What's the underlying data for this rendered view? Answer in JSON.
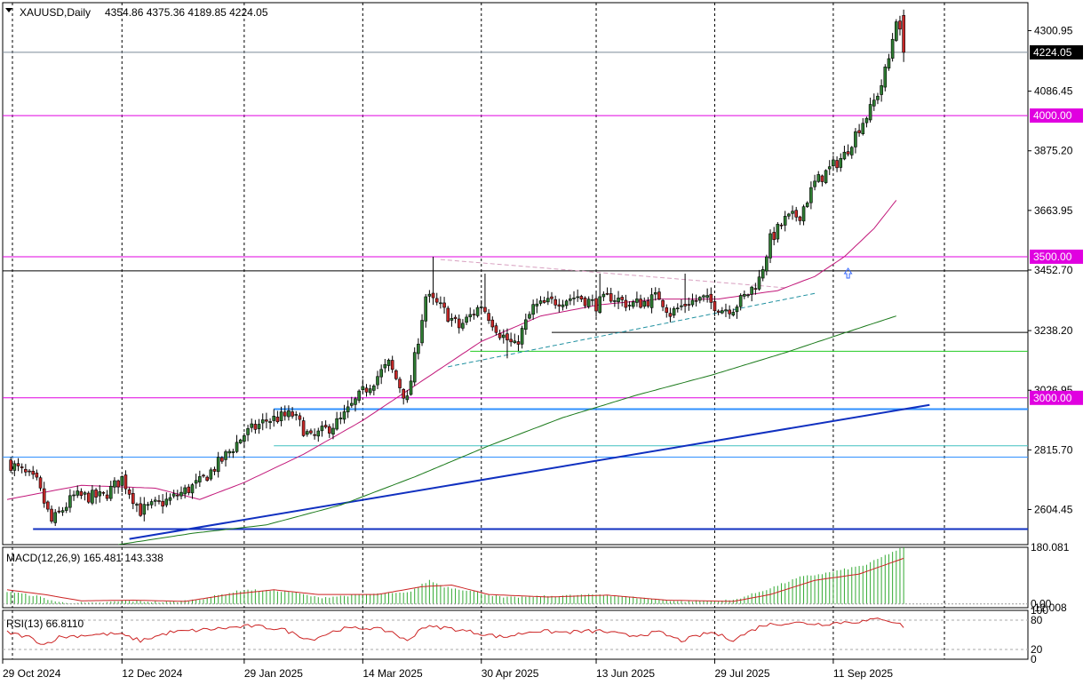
{
  "header": {
    "symbol": "XAUUSD,Daily",
    "ohlc": "4354.86 4375.36 4189.85 4224.05"
  },
  "colors": {
    "bull_candle": "#2e7d32",
    "bear_candle": "#c62828",
    "wick": "#000000",
    "ma_fast": "#c2187a",
    "ma_slow": "#1b7a1b",
    "support_resistance": "#e000e0",
    "trendline": "#1030c0",
    "light_blue": "#3090ff",
    "green_level": "#22cc22",
    "macd_hist": "#33aa33",
    "macd_signal": "#cc2222",
    "rsi_line": "#cc2222",
    "grid": "#000000"
  },
  "chart_data": [
    {
      "type": "candlestick",
      "title": "XAUUSD,Daily",
      "ohlc_last": {
        "open": 4354.86,
        "high": 4375.36,
        "low": 4189.85,
        "close": 4224.05
      },
      "ylim": [
        2480,
        4400
      ],
      "y_ticks": [
        "4300.95",
        "4086.45",
        "3875.20",
        "3663.95",
        "3452.70",
        "3238.20",
        "3026.95",
        "2815.70",
        "2604.45"
      ],
      "current_price_label": "4224.05",
      "x_ticks": [
        "29 Oct 2024",
        "12 Dec 2024",
        "29 Jan 2025",
        "14 Mar 2025",
        "30 Apr 2025",
        "13 Jun 2025",
        "29 Jul 2025",
        "11 Sep 2025"
      ],
      "x_tick_bars": [
        0,
        31,
        64,
        96,
        128,
        159,
        191,
        223
      ],
      "bar_count": 253,
      "anchors": [
        [
          0,
          2775
        ],
        [
          8,
          2700
        ],
        [
          12,
          2560
        ],
        [
          18,
          2650
        ],
        [
          26,
          2650
        ],
        [
          31,
          2715
        ],
        [
          36,
          2600
        ],
        [
          44,
          2640
        ],
        [
          52,
          2700
        ],
        [
          58,
          2780
        ],
        [
          64,
          2870
        ],
        [
          70,
          2920
        ],
        [
          77,
          2940
        ],
        [
          82,
          2855
        ],
        [
          90,
          2920
        ],
        [
          96,
          3020
        ],
        [
          103,
          3120
        ],
        [
          108,
          2990
        ],
        [
          113,
          3360
        ],
        [
          117,
          3320
        ],
        [
          122,
          3250
        ],
        [
          128,
          3330
        ],
        [
          133,
          3230
        ],
        [
          137,
          3180
        ],
        [
          142,
          3320
        ],
        [
          147,
          3340
        ],
        [
          154,
          3360
        ],
        [
          159,
          3330
        ],
        [
          163,
          3360
        ],
        [
          168,
          3330
        ],
        [
          172,
          3340
        ],
        [
          176,
          3360
        ],
        [
          179,
          3300
        ],
        [
          184,
          3340
        ],
        [
          188,
          3350
        ],
        [
          193,
          3315
        ],
        [
          196,
          3320
        ],
        [
          200,
          3370
        ],
        [
          203,
          3420
        ],
        [
          206,
          3560
        ],
        [
          210,
          3630
        ],
        [
          214,
          3650
        ],
        [
          218,
          3760
        ],
        [
          222,
          3810
        ],
        [
          226,
          3860
        ],
        [
          230,
          3960
        ],
        [
          233,
          4020
        ],
        [
          236,
          4110
        ],
        [
          238,
          4200
        ],
        [
          240,
          4350
        ],
        [
          242,
          4224.05
        ]
      ],
      "spikes": [
        [
          115,
          3500,
          "high"
        ],
        [
          129,
          3440,
          "high"
        ],
        [
          135,
          3140,
          "low"
        ],
        [
          160,
          3440,
          "high"
        ],
        [
          183,
          3440,
          "high"
        ]
      ],
      "ma_fast_anchors": [
        [
          0,
          2640
        ],
        [
          20,
          2690
        ],
        [
          40,
          2680
        ],
        [
          52,
          2640
        ],
        [
          64,
          2700
        ],
        [
          80,
          2800
        ],
        [
          96,
          2920
        ],
        [
          112,
          3060
        ],
        [
          128,
          3200
        ],
        [
          144,
          3290
        ],
        [
          160,
          3330
        ],
        [
          176,
          3350
        ],
        [
          192,
          3350
        ],
        [
          208,
          3380
        ],
        [
          218,
          3430
        ],
        [
          226,
          3500
        ],
        [
          234,
          3600
        ],
        [
          240,
          3700
        ]
      ],
      "ma_slow_anchors": [
        [
          30,
          2480
        ],
        [
          50,
          2520
        ],
        [
          70,
          2550
        ],
        [
          90,
          2620
        ],
        [
          110,
          2720
        ],
        [
          130,
          2830
        ],
        [
          150,
          2930
        ],
        [
          170,
          3010
        ],
        [
          190,
          3080
        ],
        [
          210,
          3160
        ],
        [
          226,
          3230
        ],
        [
          240,
          3290
        ]
      ],
      "horizontal_levels": [
        {
          "price": 4000,
          "label": "4000.00",
          "color": "support_resistance"
        },
        {
          "price": 3500,
          "label": "3500.00",
          "color": "support_resistance"
        },
        {
          "price": 3000,
          "label": "3000.00",
          "color": "support_resistance"
        },
        {
          "price": 4224.05,
          "color": "grey"
        },
        {
          "price": 3450,
          "color": "black"
        },
        {
          "price": 3232,
          "color": "black",
          "from_bar": 147
        },
        {
          "price": 3165,
          "color": "green_level",
          "from_bar": 125
        },
        {
          "price": 2960,
          "color": "light_blue",
          "from_bar": 72
        },
        {
          "price": 2830,
          "color": "teal",
          "from_bar": 72
        },
        {
          "price": 2790,
          "color": "light_blue"
        },
        {
          "price": 2535,
          "color": "trendline",
          "from_bar": 7
        }
      ],
      "trend_lines": [
        {
          "from": [
            33,
            2500
          ],
          "to": [
            249,
            2975
          ],
          "color": "trendline"
        },
        {
          "from": [
            119,
            3110
          ],
          "to": [
            218,
            3370
          ],
          "color": "teal",
          "style": "dashed"
        },
        {
          "from": [
            117,
            3490
          ],
          "to": [
            210,
            3390
          ],
          "color": "pink",
          "style": "dashed"
        }
      ],
      "grid": true
    },
    {
      "type": "bar",
      "title": "MACD(12,26,9) 165.481 143.338",
      "macd": 165.481,
      "signal": 143.338,
      "y_ticks": [
        "180.081",
        "0.00",
        "-12.008"
      ],
      "ylim": [
        -12.008,
        180.081
      ],
      "hist_anchors": [
        [
          0,
          40
        ],
        [
          8,
          25
        ],
        [
          14,
          5
        ],
        [
          24,
          2
        ],
        [
          32,
          10
        ],
        [
          44,
          5
        ],
        [
          52,
          15
        ],
        [
          64,
          45
        ],
        [
          76,
          40
        ],
        [
          84,
          20
        ],
        [
          96,
          30
        ],
        [
          108,
          35
        ],
        [
          114,
          75
        ],
        [
          118,
          55
        ],
        [
          126,
          40
        ],
        [
          134,
          20
        ],
        [
          146,
          25
        ],
        [
          160,
          30
        ],
        [
          172,
          18
        ],
        [
          182,
          8
        ],
        [
          196,
          12
        ],
        [
          206,
          50
        ],
        [
          214,
          85
        ],
        [
          222,
          100
        ],
        [
          232,
          125
        ],
        [
          238,
          160
        ],
        [
          242,
          180
        ]
      ],
      "signal_anchors": [
        [
          0,
          45
        ],
        [
          10,
          30
        ],
        [
          20,
          10
        ],
        [
          34,
          12
        ],
        [
          48,
          8
        ],
        [
          60,
          30
        ],
        [
          72,
          45
        ],
        [
          84,
          30
        ],
        [
          100,
          30
        ],
        [
          112,
          55
        ],
        [
          120,
          60
        ],
        [
          130,
          30
        ],
        [
          146,
          22
        ],
        [
          162,
          28
        ],
        [
          178,
          12
        ],
        [
          196,
          8
        ],
        [
          206,
          30
        ],
        [
          218,
          75
        ],
        [
          230,
          95
        ],
        [
          242,
          145
        ]
      ],
      "grid": true
    },
    {
      "type": "line",
      "title": "RSI(13) 66.8110",
      "rsi": 66.811,
      "y_ticks": [
        "100",
        "80",
        "20",
        "0"
      ],
      "ylim": [
        0,
        100
      ],
      "rsi_anchors": [
        [
          0,
          55
        ],
        [
          6,
          45
        ],
        [
          10,
          30
        ],
        [
          14,
          45
        ],
        [
          22,
          50
        ],
        [
          30,
          52
        ],
        [
          36,
          38
        ],
        [
          44,
          55
        ],
        [
          56,
          62
        ],
        [
          66,
          68
        ],
        [
          74,
          62
        ],
        [
          82,
          40
        ],
        [
          90,
          62
        ],
        [
          98,
          64
        ],
        [
          104,
          56
        ],
        [
          108,
          36
        ],
        [
          112,
          66
        ],
        [
          118,
          65
        ],
        [
          126,
          55
        ],
        [
          134,
          45
        ],
        [
          142,
          58
        ],
        [
          150,
          55
        ],
        [
          160,
          58
        ],
        [
          168,
          48
        ],
        [
          176,
          55
        ],
        [
          182,
          38
        ],
        [
          190,
          55
        ],
        [
          196,
          40
        ],
        [
          204,
          70
        ],
        [
          212,
          75
        ],
        [
          220,
          72
        ],
        [
          226,
          76
        ],
        [
          232,
          78
        ],
        [
          236,
          84
        ],
        [
          240,
          75
        ],
        [
          242,
          67
        ]
      ],
      "grid": true
    }
  ]
}
